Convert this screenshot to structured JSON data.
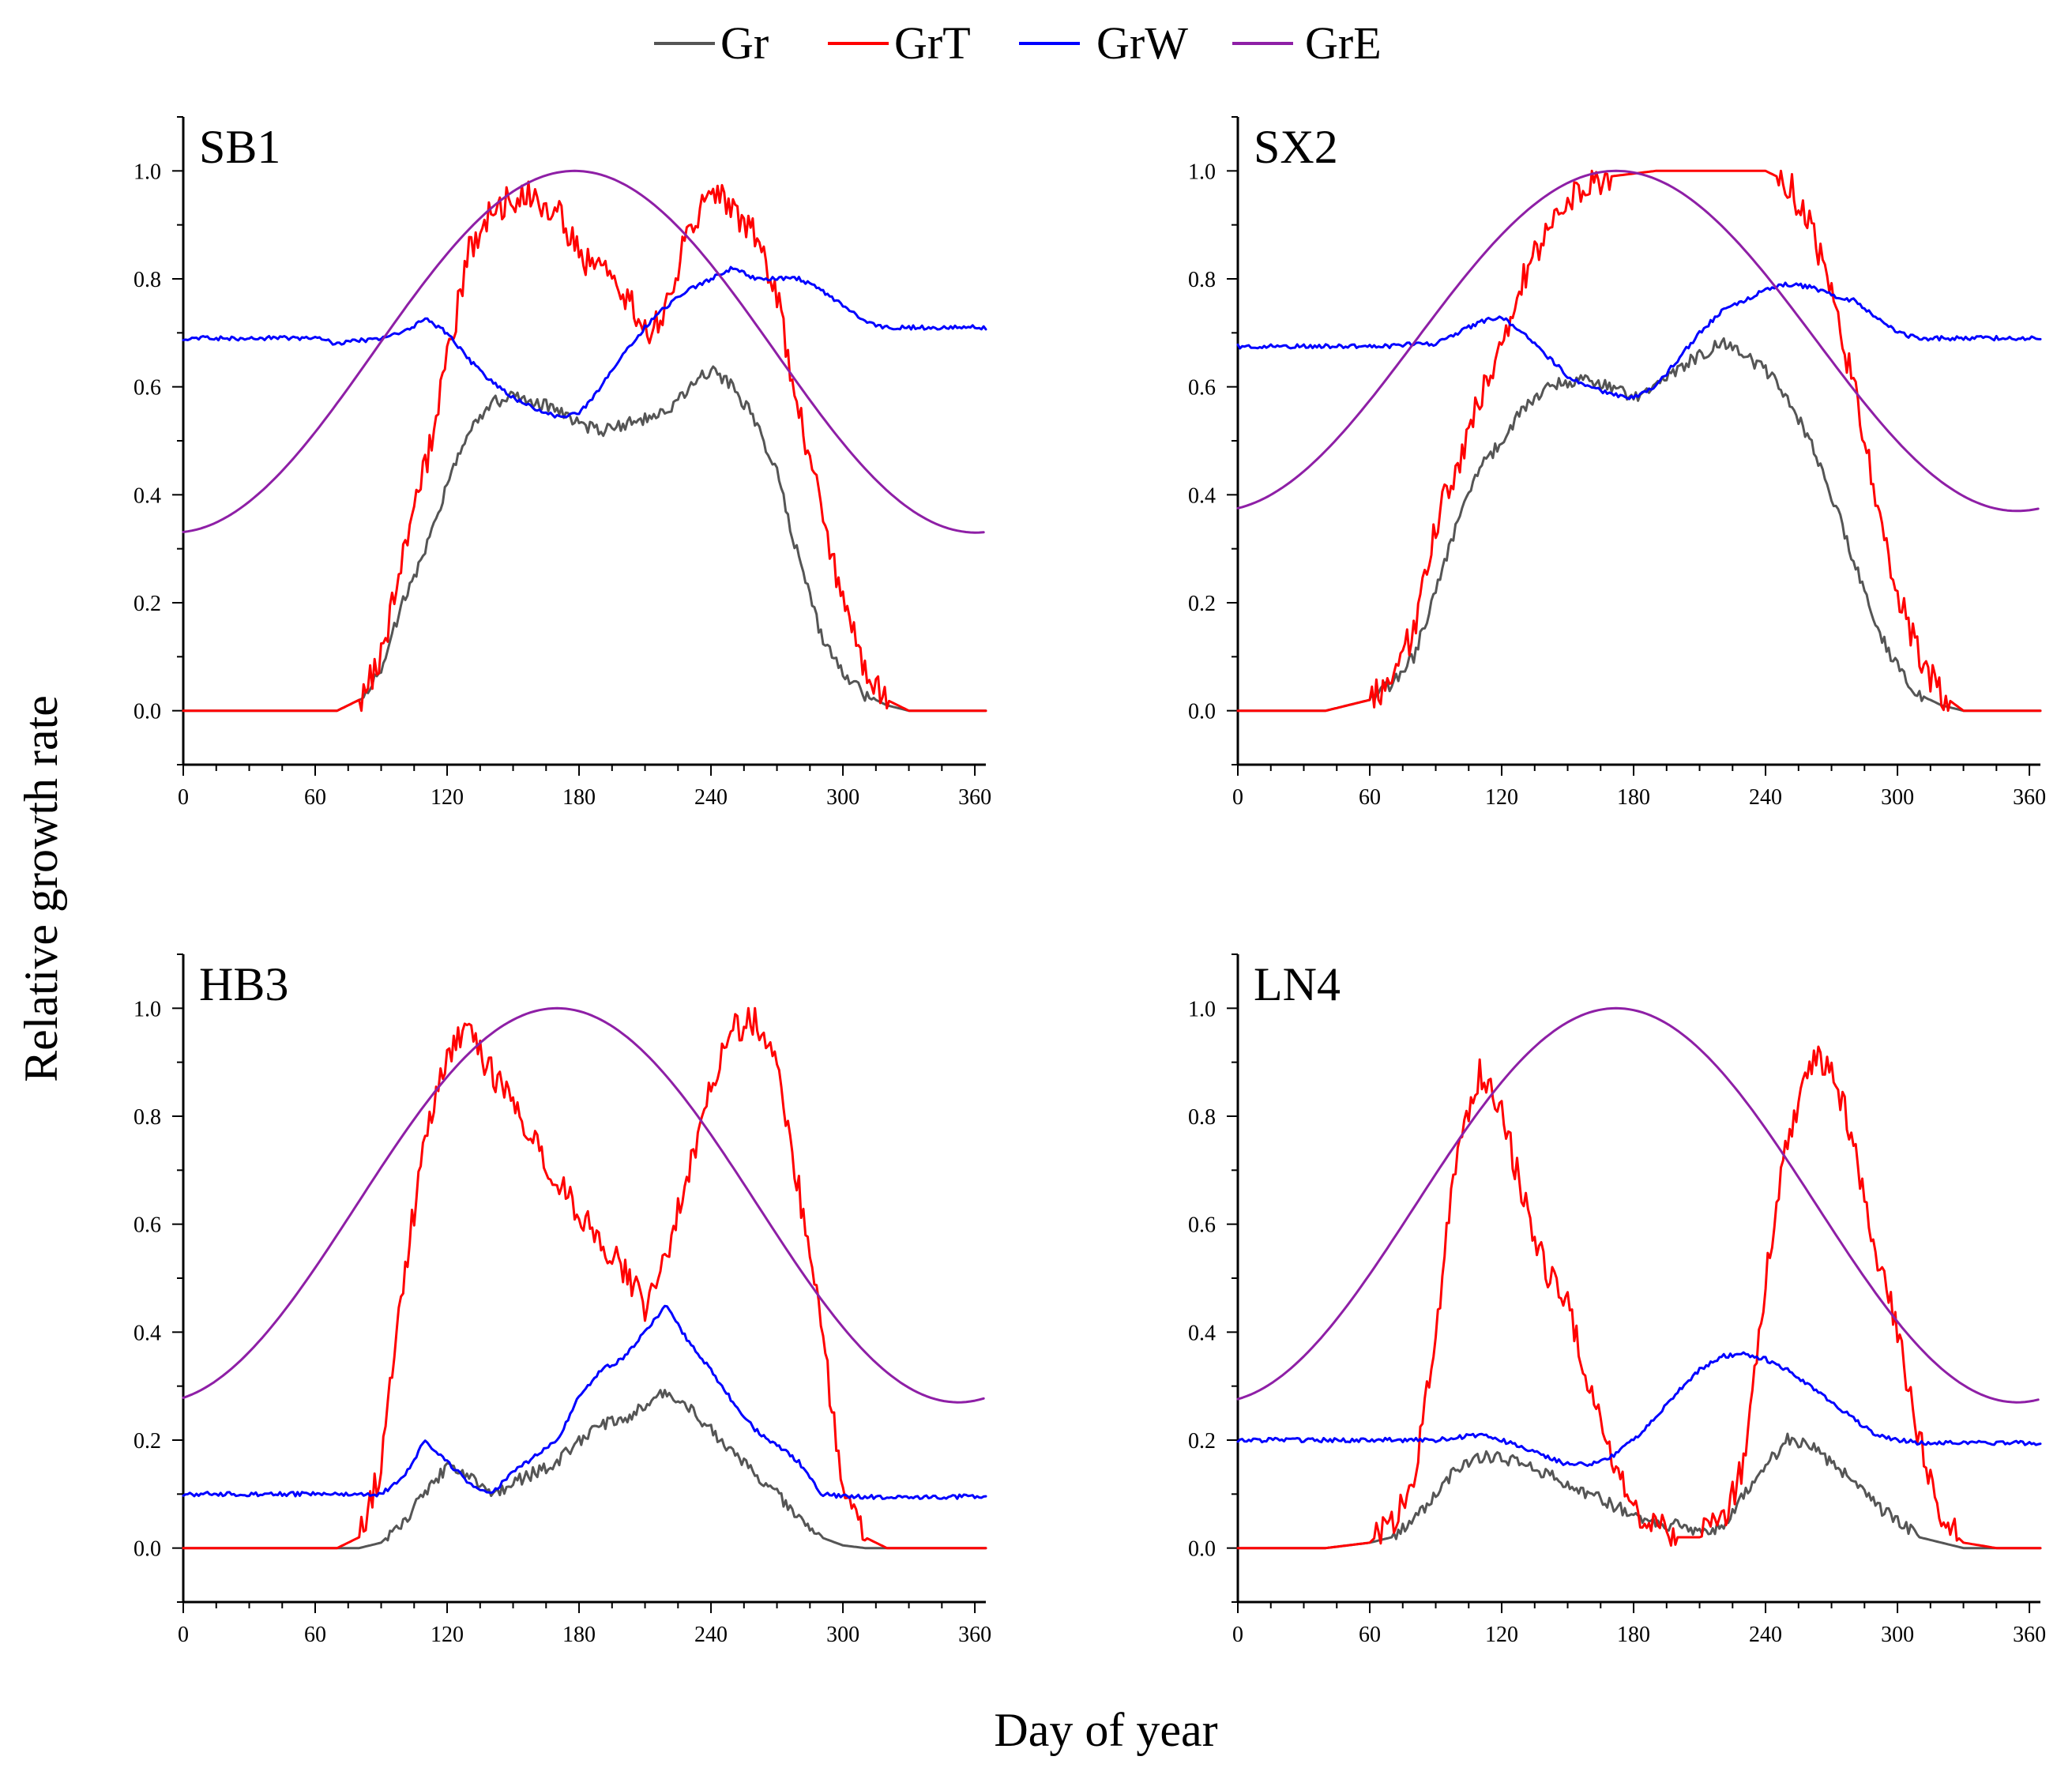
{
  "colors": {
    "Gr": "#555555",
    "GrT": "#ff0000",
    "GrW": "#0000ff",
    "GrE": "#8e1fa6"
  },
  "legend": [
    {
      "key": "Gr",
      "label": "Gr"
    },
    {
      "key": "GrT",
      "label": "GrT"
    },
    {
      "key": "GrW",
      "label": "GrW"
    },
    {
      "key": "GrE",
      "label": "GrE"
    }
  ],
  "xlabel": "Day of year",
  "ylabel": "Relative growth rate",
  "chart_data": [
    {
      "type": "line",
      "title": "SB1",
      "xlim": [
        0,
        365
      ],
      "ylim": [
        -0.1,
        1.1
      ],
      "xticks": [
        0,
        60,
        120,
        180,
        240,
        300,
        360
      ],
      "yticks": [
        0.0,
        0.2,
        0.4,
        0.6,
        0.8,
        1.0
      ],
      "x": [
        0,
        20,
        40,
        60,
        70,
        80,
        90,
        100,
        110,
        120,
        130,
        140,
        150,
        160,
        170,
        180,
        190,
        200,
        210,
        220,
        230,
        240,
        250,
        260,
        270,
        280,
        290,
        300,
        310,
        320,
        330,
        345,
        365
      ],
      "series": [
        {
          "name": "Gr",
          "values": [
            0.0,
            0.0,
            0.0,
            0.0,
            0.0,
            0.02,
            0.08,
            0.2,
            0.3,
            0.42,
            0.52,
            0.57,
            0.58,
            0.57,
            0.56,
            0.53,
            0.52,
            0.53,
            0.54,
            0.55,
            0.6,
            0.63,
            0.6,
            0.54,
            0.44,
            0.28,
            0.14,
            0.07,
            0.03,
            0.01,
            0.0,
            0.0,
            0.0
          ]
        },
        {
          "name": "GrT",
          "values": [
            0.0,
            0.0,
            0.0,
            0.0,
            0.0,
            0.02,
            0.1,
            0.28,
            0.45,
            0.65,
            0.85,
            0.93,
            0.95,
            0.95,
            0.93,
            0.84,
            0.82,
            0.78,
            0.7,
            0.75,
            0.9,
            0.96,
            0.93,
            0.88,
            0.77,
            0.55,
            0.38,
            0.2,
            0.08,
            0.02,
            0.0,
            0.0,
            0.0
          ]
        },
        {
          "name": "GrW",
          "values": [
            0.69,
            0.69,
            0.69,
            0.69,
            0.68,
            0.685,
            0.69,
            0.7,
            0.725,
            0.7,
            0.65,
            0.61,
            0.58,
            0.56,
            0.545,
            0.55,
            0.6,
            0.66,
            0.71,
            0.75,
            0.78,
            0.8,
            0.82,
            0.8,
            0.8,
            0.8,
            0.78,
            0.75,
            0.72,
            0.71,
            0.71,
            0.71,
            0.71
          ]
        }
      ],
      "gre": {
        "min": 0.33,
        "peak_day": 178
      }
    },
    {
      "type": "line",
      "title": "SX2",
      "xlim": [
        0,
        365
      ],
      "ylim": [
        -0.1,
        1.1
      ],
      "xticks": [
        0,
        60,
        120,
        180,
        240,
        300,
        360
      ],
      "yticks": [
        0.0,
        0.2,
        0.4,
        0.6,
        0.8,
        1.0
      ],
      "x": [
        0,
        20,
        40,
        50,
        60,
        70,
        80,
        90,
        100,
        110,
        120,
        130,
        140,
        150,
        160,
        170,
        180,
        190,
        200,
        210,
        220,
        230,
        240,
        250,
        260,
        270,
        280,
        290,
        300,
        310,
        320,
        330,
        345,
        365
      ],
      "series": [
        {
          "name": "Gr",
          "values": [
            0.0,
            0.0,
            0.0,
            0.01,
            0.02,
            0.05,
            0.1,
            0.22,
            0.35,
            0.45,
            0.5,
            0.56,
            0.6,
            0.61,
            0.61,
            0.6,
            0.58,
            0.6,
            0.63,
            0.66,
            0.68,
            0.66,
            0.63,
            0.58,
            0.5,
            0.4,
            0.28,
            0.16,
            0.08,
            0.03,
            0.01,
            0.0,
            0.0,
            0.0
          ]
        },
        {
          "name": "GrT",
          "values": [
            0.0,
            0.0,
            0.0,
            0.01,
            0.02,
            0.06,
            0.15,
            0.35,
            0.45,
            0.58,
            0.68,
            0.8,
            0.88,
            0.95,
            0.98,
            0.99,
            0.995,
            1.0,
            1.0,
            1.0,
            1.0,
            1.0,
            1.0,
            0.98,
            0.9,
            0.78,
            0.6,
            0.4,
            0.22,
            0.1,
            0.03,
            0.0,
            0.0,
            0.0
          ]
        },
        {
          "name": "GrW",
          "values": [
            0.675,
            0.675,
            0.675,
            0.675,
            0.675,
            0.675,
            0.68,
            0.68,
            0.7,
            0.72,
            0.73,
            0.7,
            0.66,
            0.62,
            0.6,
            0.585,
            0.58,
            0.6,
            0.65,
            0.7,
            0.74,
            0.76,
            0.78,
            0.79,
            0.785,
            0.77,
            0.76,
            0.73,
            0.7,
            0.69,
            0.69,
            0.69,
            0.69,
            0.69
          ]
        }
      ],
      "gre": {
        "min": 0.37,
        "peak_day": 172
      }
    },
    {
      "type": "line",
      "title": "HB3",
      "xlim": [
        0,
        365
      ],
      "ylim": [
        -0.1,
        1.1
      ],
      "xticks": [
        0,
        60,
        120,
        180,
        240,
        300,
        360
      ],
      "yticks": [
        0.0,
        0.2,
        0.4,
        0.6,
        0.8,
        1.0
      ],
      "x": [
        0,
        20,
        40,
        60,
        70,
        80,
        90,
        100,
        110,
        120,
        130,
        140,
        150,
        160,
        170,
        180,
        190,
        200,
        210,
        220,
        230,
        240,
        250,
        260,
        270,
        280,
        290,
        300,
        310,
        320,
        345,
        365
      ],
      "series": [
        {
          "name": "Gr",
          "values": [
            0.0,
            0.0,
            0.0,
            0.0,
            0.0,
            0.0,
            0.01,
            0.05,
            0.1,
            0.15,
            0.13,
            0.1,
            0.12,
            0.14,
            0.16,
            0.2,
            0.23,
            0.24,
            0.26,
            0.29,
            0.26,
            0.22,
            0.18,
            0.14,
            0.1,
            0.06,
            0.02,
            0.005,
            0.0,
            0.0,
            0.0,
            0.0
          ]
        },
        {
          "name": "GrT",
          "values": [
            0.0,
            0.0,
            0.0,
            0.0,
            0.0,
            0.02,
            0.15,
            0.5,
            0.75,
            0.92,
            0.95,
            0.88,
            0.82,
            0.76,
            0.68,
            0.62,
            0.56,
            0.52,
            0.45,
            0.55,
            0.7,
            0.85,
            0.96,
            0.98,
            0.88,
            0.66,
            0.42,
            0.1,
            0.02,
            0.0,
            0.0,
            0.0
          ]
        },
        {
          "name": "GrW",
          "values": [
            0.1,
            0.1,
            0.1,
            0.1,
            0.1,
            0.1,
            0.1,
            0.13,
            0.2,
            0.16,
            0.12,
            0.1,
            0.14,
            0.17,
            0.2,
            0.28,
            0.33,
            0.35,
            0.4,
            0.45,
            0.38,
            0.33,
            0.27,
            0.22,
            0.19,
            0.16,
            0.1,
            0.095,
            0.095,
            0.095,
            0.095,
            0.095
          ]
        }
      ],
      "gre": {
        "min": 0.27,
        "peak_day": 170
      }
    },
    {
      "type": "line",
      "title": "LN4",
      "xlim": [
        0,
        365
      ],
      "ylim": [
        -0.1,
        1.1
      ],
      "xticks": [
        0,
        60,
        120,
        180,
        240,
        300,
        360
      ],
      "yticks": [
        0.0,
        0.2,
        0.4,
        0.6,
        0.8,
        1.0
      ],
      "x": [
        0,
        20,
        40,
        60,
        70,
        80,
        90,
        100,
        110,
        120,
        130,
        140,
        150,
        160,
        170,
        180,
        190,
        200,
        210,
        220,
        230,
        240,
        250,
        260,
        270,
        280,
        290,
        300,
        310,
        320,
        330,
        345,
        365
      ],
      "series": [
        {
          "name": "Gr",
          "values": [
            0.0,
            0.0,
            0.0,
            0.01,
            0.02,
            0.05,
            0.1,
            0.15,
            0.17,
            0.17,
            0.15,
            0.14,
            0.12,
            0.1,
            0.08,
            0.06,
            0.05,
            0.04,
            0.03,
            0.04,
            0.1,
            0.15,
            0.2,
            0.19,
            0.16,
            0.12,
            0.08,
            0.05,
            0.02,
            0.01,
            0.0,
            0.0,
            0.0
          ]
        },
        {
          "name": "GrT",
          "values": [
            0.0,
            0.0,
            0.0,
            0.01,
            0.05,
            0.12,
            0.4,
            0.75,
            0.88,
            0.8,
            0.65,
            0.52,
            0.45,
            0.3,
            0.18,
            0.08,
            0.04,
            0.02,
            0.02,
            0.05,
            0.15,
            0.5,
            0.75,
            0.9,
            0.9,
            0.75,
            0.55,
            0.4,
            0.2,
            0.05,
            0.01,
            0.0,
            0.0
          ]
        },
        {
          "name": "GrW",
          "values": [
            0.2,
            0.2,
            0.2,
            0.2,
            0.2,
            0.2,
            0.2,
            0.205,
            0.21,
            0.2,
            0.185,
            0.17,
            0.155,
            0.155,
            0.17,
            0.2,
            0.24,
            0.29,
            0.33,
            0.355,
            0.36,
            0.35,
            0.33,
            0.3,
            0.27,
            0.24,
            0.21,
            0.2,
            0.195,
            0.195,
            0.195,
            0.195,
            0.195
          ]
        }
      ],
      "gre": {
        "min": 0.27,
        "peak_day": 172
      }
    }
  ]
}
